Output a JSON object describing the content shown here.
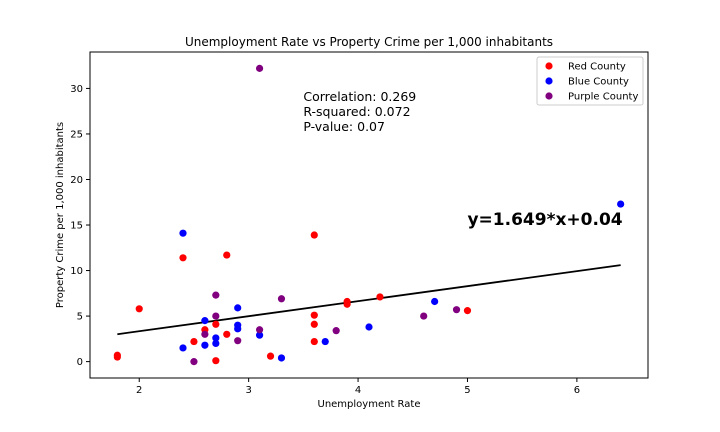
{
  "chart_data": {
    "type": "scatter",
    "title": "Unemployment Rate vs Property Crime per 1,000 inhabitants",
    "xlabel": "Unemployment Rate",
    "ylabel": "Property Crime per 1,000 inhabitants",
    "xlim": [
      1.55,
      6.65
    ],
    "ylim": [
      -1.8,
      34.0
    ],
    "xticks": [
      2,
      3,
      4,
      5,
      6
    ],
    "yticks": [
      0,
      5,
      10,
      15,
      20,
      25,
      30
    ],
    "legend_position": "top-right",
    "series": [
      {
        "name": "Red County",
        "color": "#ff0000",
        "points": [
          [
            1.8,
            0.5
          ],
          [
            1.8,
            0.7
          ],
          [
            2.0,
            5.8
          ],
          [
            2.4,
            11.4
          ],
          [
            2.5,
            2.2
          ],
          [
            2.6,
            3.5
          ],
          [
            2.7,
            4.1
          ],
          [
            2.7,
            0.1
          ],
          [
            2.8,
            11.7
          ],
          [
            2.8,
            3.0
          ],
          [
            3.2,
            0.6
          ],
          [
            3.6,
            13.9
          ],
          [
            3.6,
            5.1
          ],
          [
            3.6,
            4.1
          ],
          [
            3.6,
            2.2
          ],
          [
            3.9,
            6.6
          ],
          [
            3.9,
            6.3
          ],
          [
            4.2,
            7.1
          ],
          [
            5.0,
            5.6
          ]
        ]
      },
      {
        "name": "Blue County",
        "color": "#0000ff",
        "points": [
          [
            2.4,
            14.1
          ],
          [
            2.4,
            1.5
          ],
          [
            2.6,
            4.5
          ],
          [
            2.6,
            1.8
          ],
          [
            2.7,
            2.6
          ],
          [
            2.7,
            2.0
          ],
          [
            2.9,
            5.9
          ],
          [
            2.9,
            4.0
          ],
          [
            2.9,
            3.6
          ],
          [
            3.1,
            2.9
          ],
          [
            3.3,
            0.4
          ],
          [
            3.7,
            2.2
          ],
          [
            4.1,
            3.8
          ],
          [
            4.7,
            6.6
          ],
          [
            6.4,
            17.3
          ]
        ]
      },
      {
        "name": "Purple County",
        "color": "#800080",
        "points": [
          [
            2.5,
            0.0
          ],
          [
            2.6,
            3.0
          ],
          [
            2.7,
            7.3
          ],
          [
            2.7,
            5.0
          ],
          [
            2.9,
            2.3
          ],
          [
            3.1,
            32.2
          ],
          [
            3.1,
            3.5
          ],
          [
            3.3,
            6.9
          ],
          [
            3.8,
            3.4
          ],
          [
            4.6,
            5.0
          ],
          [
            4.9,
            5.7
          ]
        ]
      }
    ],
    "regression": {
      "slope": 1.649,
      "intercept": 0.04,
      "x_range": [
        1.8,
        6.4
      ],
      "color": "#000000",
      "equation_label": "y=1.649*x+0.04",
      "equation_anchor": [
        5.0,
        15.0
      ]
    },
    "annotations": {
      "anchor": [
        3.5,
        25.3
      ],
      "lines": [
        "Correlation: 0.269",
        "R-squared: 0.072",
        "P-value: 0.07"
      ]
    }
  }
}
